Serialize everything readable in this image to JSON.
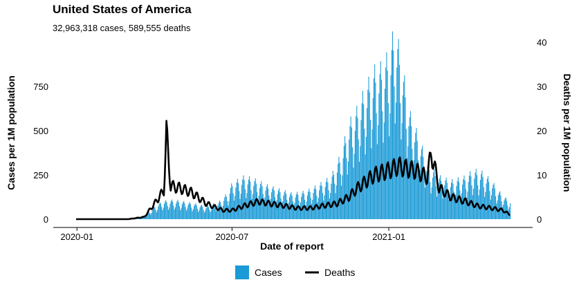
{
  "title": "United States of America",
  "subtitle": "32,963,318 cases, 589,555 deaths",
  "colors": {
    "cases": "#1a9ad6",
    "deaths": "#000000"
  },
  "chart_data": {
    "type": "bar",
    "title": "United States of America",
    "subtitle": "32,963,318 cases, 589,555 deaths",
    "xlabel": "Date of report",
    "ylabel_left": "Cases per 1M population",
    "ylabel_right": "Deaths per 1M population",
    "x_range": [
      "2019-12-31",
      "2021-05-23"
    ],
    "x_ticks": [
      "2020-01",
      "2020-07",
      "2021-01"
    ],
    "y_left_ticks": [
      0,
      250,
      500,
      750
    ],
    "y_right_ticks": [
      0,
      10,
      20,
      30,
      40
    ],
    "y_left_range": [
      0,
      1000
    ],
    "y_right_range": [
      0,
      40
    ],
    "grid": false,
    "legend_position": "bottom",
    "series": [
      {
        "name": "Cases",
        "type": "bar",
        "axis": "left",
        "color": "#1a9ad6",
        "dates": [
          "2020-03-01",
          "2020-03-15",
          "2020-04-01",
          "2020-04-10",
          "2020-04-24",
          "2020-05-15",
          "2020-06-01",
          "2020-06-15",
          "2020-06-25",
          "2020-07-01",
          "2020-07-15",
          "2020-07-25",
          "2020-08-10",
          "2020-08-25",
          "2020-09-10",
          "2020-09-25",
          "2020-10-10",
          "2020-10-25",
          "2020-11-05",
          "2020-11-15",
          "2020-11-25",
          "2020-12-05",
          "2020-12-15",
          "2020-12-25",
          "2021-01-01",
          "2021-01-08",
          "2021-01-15",
          "2021-01-25",
          "2021-02-05",
          "2021-02-15",
          "2021-03-01",
          "2021-03-15",
          "2021-04-01",
          "2021-04-10",
          "2021-04-20",
          "2021-05-01",
          "2021-05-10",
          "2021-05-20"
        ],
        "values": [
          0,
          5,
          60,
          85,
          90,
          75,
          60,
          80,
          120,
          170,
          200,
          190,
          160,
          140,
          120,
          130,
          160,
          200,
          300,
          450,
          520,
          620,
          700,
          720,
          780,
          900,
          750,
          500,
          380,
          260,
          200,
          180,
          200,
          230,
          220,
          180,
          130,
          90
        ]
      },
      {
        "name": "Deaths",
        "type": "line",
        "axis": "right",
        "color": "#000000",
        "dates": [
          "2020-03-01",
          "2020-03-20",
          "2020-04-01",
          "2020-04-12",
          "2020-04-15",
          "2020-04-20",
          "2020-05-01",
          "2020-05-15",
          "2020-06-01",
          "2020-06-20",
          "2020-07-01",
          "2020-07-15",
          "2020-08-01",
          "2020-08-15",
          "2020-09-01",
          "2020-09-15",
          "2020-10-01",
          "2020-10-15",
          "2020-11-01",
          "2020-11-15",
          "2020-11-25",
          "2020-12-05",
          "2020-12-15",
          "2021-01-01",
          "2021-01-12",
          "2021-01-20",
          "2021-02-01",
          "2021-02-15",
          "2021-02-20",
          "2021-03-01",
          "2021-03-15",
          "2021-04-01",
          "2021-04-15",
          "2021-05-01",
          "2021-05-15",
          "2021-05-23"
        ],
        "values": [
          0,
          0.5,
          3.5,
          6.5,
          19.5,
          7.5,
          7,
          6,
          3.5,
          2,
          2,
          3,
          4,
          3.5,
          3,
          2.5,
          2.5,
          3,
          3.5,
          5,
          7,
          8.5,
          10,
          11,
          12,
          11.5,
          11,
          9.5,
          15,
          7,
          5,
          4,
          3,
          2.5,
          2,
          1
        ]
      }
    ]
  }
}
